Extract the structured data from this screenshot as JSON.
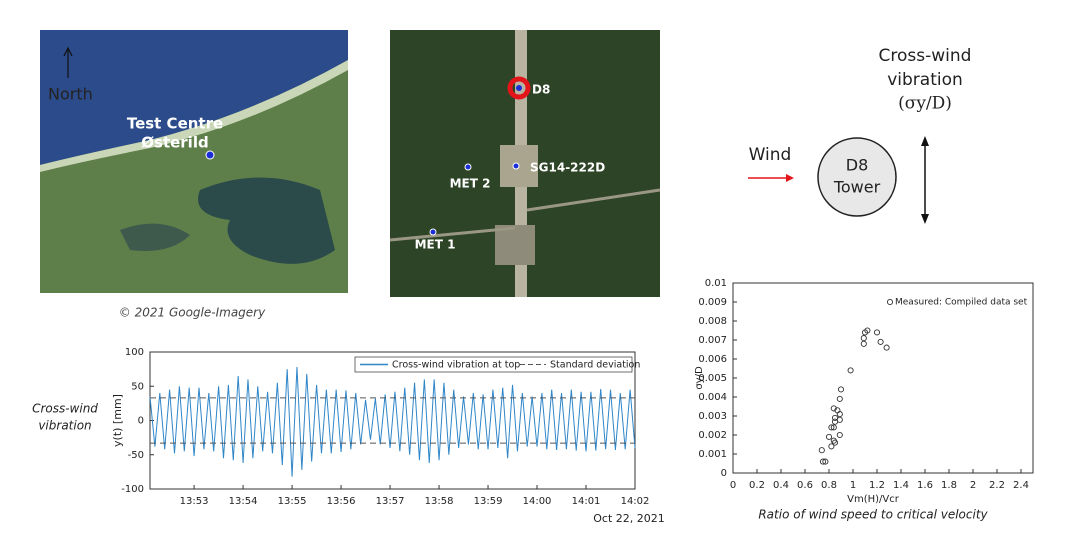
{
  "maps": {
    "north": "North",
    "site": [
      "Test Centre",
      "Østerild"
    ],
    "copyright": "© 2021 Google-Imagery",
    "points": [
      "D8",
      "SG14-222D",
      "MET 2",
      "MET 1"
    ]
  },
  "diagram": {
    "vibration": [
      "Cross-wind",
      "vibration"
    ],
    "formula": "(σy/D)",
    "wind": "Wind",
    "tower": [
      "D8",
      "Tower"
    ]
  },
  "chart_data": [
    {
      "type": "line",
      "caption": [
        "Cross-wind",
        "vibration"
      ],
      "ylabel": "y(t) [mm]",
      "date_label": "Oct 22, 2021",
      "xlim": [
        832.1,
        842
      ],
      "ylim": [
        -100,
        100
      ],
      "yticks": [
        -100,
        -50,
        0,
        50,
        100
      ],
      "xticks": [
        {
          "value": 833,
          "label": "13:53"
        },
        {
          "value": 834,
          "label": "13:54"
        },
        {
          "value": 835,
          "label": "13:55"
        },
        {
          "value": 836,
          "label": "13:56"
        },
        {
          "value": 837,
          "label": "13:57"
        },
        {
          "value": 838,
          "label": "13:58"
        },
        {
          "value": 839,
          "label": "13:59"
        },
        {
          "value": 840,
          "label": "14:00"
        },
        {
          "value": 841,
          "label": "14:01"
        },
        {
          "value": 842,
          "label": "14:02"
        }
      ],
      "x": [
        832.1,
        832.2,
        832.3,
        832.4,
        832.5,
        832.6,
        832.7,
        832.8,
        832.9,
        833.0,
        833.1,
        833.2,
        833.3,
        833.4,
        833.5,
        833.6,
        833.7,
        833.8,
        833.9,
        834.0,
        834.1,
        834.2,
        834.3,
        834.4,
        834.5,
        834.6,
        834.7,
        834.8,
        834.9,
        835.0,
        835.1,
        835.2,
        835.3,
        835.4,
        835.5,
        835.6,
        835.7,
        835.8,
        835.9,
        836.0,
        836.1,
        836.2,
        836.3,
        836.4,
        836.5,
        836.6,
        836.7,
        836.8,
        836.9,
        837.0,
        837.1,
        837.2,
        837.3,
        837.4,
        837.5,
        837.6,
        837.7,
        837.8,
        837.9,
        838.0,
        838.1,
        838.2,
        838.3,
        838.4,
        838.5,
        838.6,
        838.7,
        838.8,
        838.9,
        839.0,
        839.1,
        839.2,
        839.3,
        839.4,
        839.5,
        839.6,
        839.7,
        839.8,
        839.9,
        840.0,
        840.1,
        840.2,
        840.3,
        840.4,
        840.5,
        840.6,
        840.7,
        840.8,
        840.9,
        841.0,
        841.1,
        841.2,
        841.3,
        841.4,
        841.5,
        841.6,
        841.7,
        841.8,
        841.9,
        842.0
      ],
      "series": [
        {
          "name": "Cross-wind vibration at top",
          "color": "#2f86c8",
          "values": [
            35,
            -38,
            40,
            -42,
            45,
            -48,
            50,
            -45,
            48,
            -52,
            48,
            -42,
            40,
            -45,
            50,
            -55,
            52,
            -58,
            65,
            -62,
            60,
            -55,
            50,
            -45,
            42,
            -48,
            55,
            -65,
            75,
            -82,
            78,
            -72,
            68,
            -60,
            52,
            -48,
            45,
            -48,
            45,
            -46,
            44,
            -42,
            40,
            -35,
            30,
            -28,
            32,
            -35,
            38,
            -40,
            42,
            -45,
            48,
            -50,
            55,
            -58,
            60,
            -62,
            60,
            -58,
            55,
            -50,
            45,
            -40,
            35,
            -35,
            40,
            -42,
            38,
            -42,
            45,
            -40,
            48,
            -55,
            52,
            -45,
            40,
            -38,
            35,
            -38,
            40,
            -42,
            45,
            -43,
            40,
            -42,
            45,
            -44,
            42,
            -45,
            42,
            -44,
            46,
            -42,
            45,
            -43,
            40,
            -42,
            45,
            -40
          ]
        }
      ],
      "reference_lines": {
        "name": "Standard deviation",
        "color": "#555555",
        "values": [
          33,
          -33
        ]
      }
    },
    {
      "type": "scatter",
      "caption": "Ratio of wind speed to critical velocity",
      "xlabel": "Vm(H)/Vcr",
      "ylabel": "σy/D",
      "xlim": [
        0,
        2.5
      ],
      "ylim": [
        0,
        0.01
      ],
      "xticks": [
        0,
        0.2,
        0.4,
        0.6,
        0.8,
        1,
        1.2,
        1.4,
        1.6,
        1.8,
        2,
        2.2,
        2.4
      ],
      "yticks": [
        0,
        0.001,
        0.002,
        0.003,
        0.004,
        0.005,
        0.006,
        0.007,
        0.008,
        0.009,
        0.01
      ],
      "series": [
        {
          "name": "Measured: Compiled data set",
          "color": "#333333",
          "x": [
            1.09,
            1.12,
            1.1,
            1.2,
            1.23,
            1.28,
            1.09,
            0.98,
            0.9,
            0.89,
            0.84,
            0.87,
            0.89,
            0.85,
            0.89,
            0.85,
            0.84,
            0.82,
            0.89,
            0.8,
            0.85,
            0.82,
            0.74,
            0.75,
            0.77,
            0.84
          ],
          "values": [
            0.0071,
            0.0075,
            0.0074,
            0.0074,
            0.0069,
            0.0066,
            0.0068,
            0.0054,
            0.0044,
            0.0039,
            0.0034,
            0.0033,
            0.0031,
            0.0029,
            0.0028,
            0.0027,
            0.0024,
            0.0024,
            0.002,
            0.0019,
            0.0016,
            0.0014,
            0.0012,
            0.0006,
            0.0006,
            0.0017
          ]
        }
      ]
    }
  ]
}
